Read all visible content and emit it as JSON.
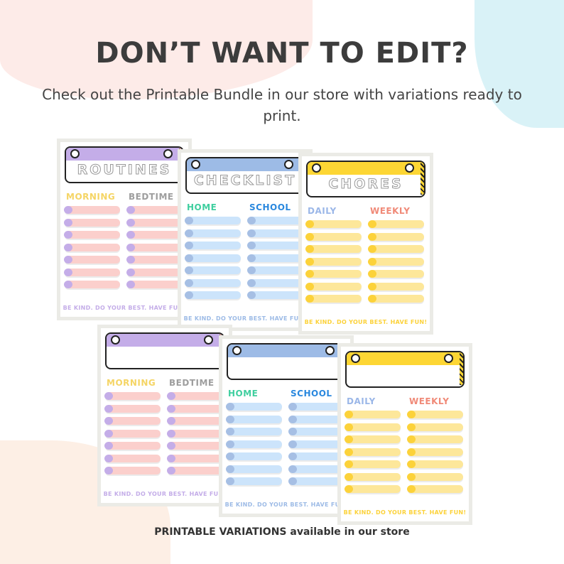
{
  "headline": "DON’T WANT TO EDIT?",
  "subline": "Check out the Printable Bundle in our store with variations ready to print.",
  "footer": "PRINTABLE VARIATIONS available in our store",
  "cards": [
    {
      "title": "ROUTINES",
      "left": "MORNING",
      "right": "BEDTIME",
      "motto": "BE KIND. DO YOUR BEST. HAVE FUN!",
      "accent": "#c4ade8",
      "row": "#fbcfcc",
      "knob": "#c4ade8",
      "leftColor": "#f5d565",
      "rightColor": "#9e9e9e",
      "mottoColor": "#c4ade8",
      "stripe": "#f4b8b3"
    },
    {
      "title": "CHECKLIST",
      "left": "HOME",
      "right": "SCHOOL",
      "motto": "BE KIND. DO YOUR BEST. HAVE FUN!",
      "accent": "#9dbbe6",
      "row": "#cce4fb",
      "knob": "#a6bfe4",
      "leftColor": "#3fcf9f",
      "rightColor": "#2a88de",
      "mottoColor": "#9dbbe6",
      "stripe": "#9dc6ee"
    },
    {
      "title": "CHORES",
      "left": "DAILY",
      "right": "WEEKLY",
      "motto": "BE KIND. DO YOUR BEST. HAVE FUN!",
      "accent": "#fdd634",
      "row": "#fde79a",
      "knob": "#fcd23a",
      "leftColor": "#9bb7e8",
      "rightColor": "#f08a78",
      "mottoColor": "#fcd23a",
      "stripe": "#fdd634"
    },
    {
      "title": "",
      "left": "MORNING",
      "right": "BEDTIME",
      "motto": "BE KIND. DO YOUR BEST. HAVE FUN!",
      "accent": "#c4ade8",
      "row": "#fbcfcc",
      "knob": "#c4ade8",
      "leftColor": "#f5d565",
      "rightColor": "#9e9e9e",
      "mottoColor": "#c4ade8",
      "stripe": "#f4b8b3"
    },
    {
      "title": "",
      "left": "HOME",
      "right": "SCHOOL",
      "motto": "BE KIND. DO YOUR BEST. HAVE FUN!",
      "accent": "#9dbbe6",
      "row": "#cce4fb",
      "knob": "#a6bfe4",
      "leftColor": "#3fcf9f",
      "rightColor": "#2a88de",
      "mottoColor": "#9dbbe6",
      "stripe": "#9dc6ee"
    },
    {
      "title": "",
      "left": "DAILY",
      "right": "WEEKLY",
      "motto": "BE KIND. DO YOUR BEST. HAVE FUN!",
      "accent": "#fdd634",
      "row": "#fde79a",
      "knob": "#fcd23a",
      "leftColor": "#9bb7e8",
      "rightColor": "#f08a78",
      "mottoColor": "#fcd23a",
      "stripe": "#fdd634"
    }
  ],
  "colors": {
    "blobPink": "#fde9e6",
    "blobBlue": "#d8f1f6",
    "blobPeach": "#fdeee3",
    "text": "#3c3c3c"
  }
}
